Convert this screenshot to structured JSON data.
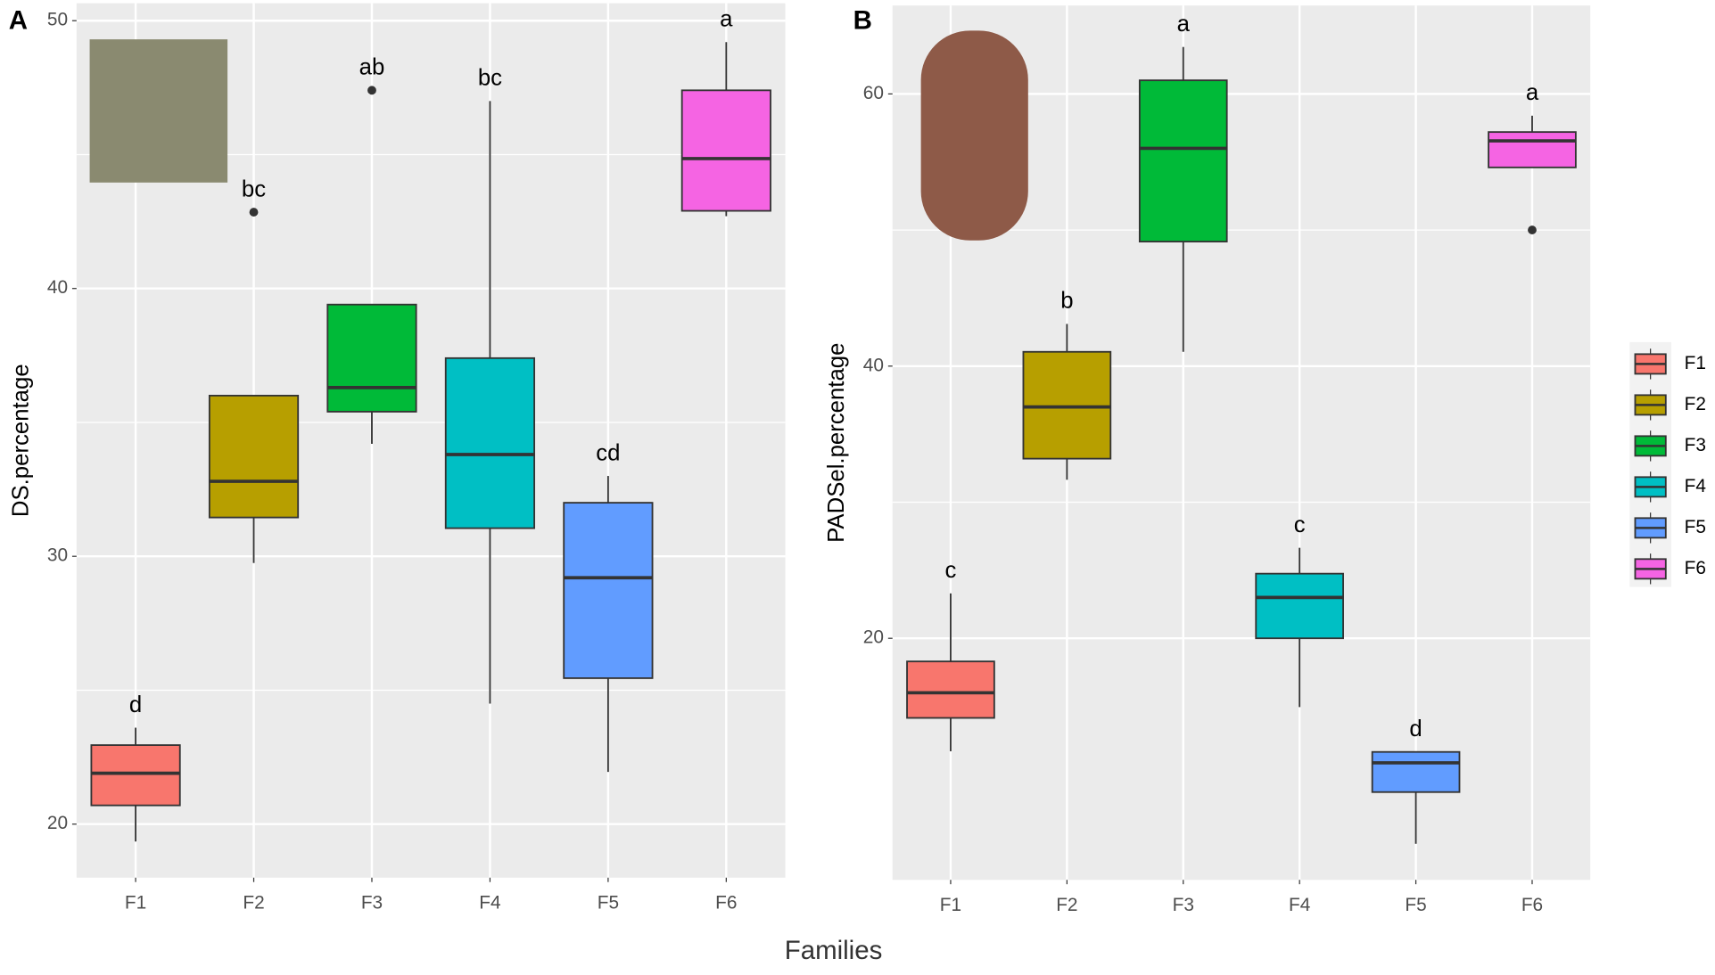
{
  "xlabel": "Families",
  "chart_data": [
    {
      "type": "box",
      "panel": "A",
      "ylabel": "DS.percentage",
      "categories": [
        "F1",
        "F2",
        "F3",
        "F4",
        "F5",
        "F6"
      ],
      "colors": [
        "#F8766D",
        "#B79F00",
        "#00BA38",
        "#00BFC4",
        "#619CFF",
        "#F564E3"
      ],
      "ylim": [
        18.0,
        50.65
      ],
      "yticks": [
        20,
        30,
        40,
        50
      ],
      "grid": true,
      "boxes": [
        {
          "low": 19.35,
          "q1": 20.7,
          "median": 21.9,
          "q3": 22.95,
          "high": 23.6,
          "outliers": []
        },
        {
          "low": 29.75,
          "q1": 31.45,
          "median": 32.8,
          "q3": 36.0,
          "high": 36.0,
          "outliers": [
            42.85
          ]
        },
        {
          "low": 34.2,
          "q1": 35.4,
          "median": 36.3,
          "q3": 39.4,
          "high": 39.4,
          "outliers": [
            47.4
          ]
        },
        {
          "low": 24.5,
          "q1": 31.05,
          "median": 33.8,
          "q3": 37.4,
          "high": 47.0,
          "outliers": []
        },
        {
          "low": 21.95,
          "q1": 25.45,
          "median": 29.2,
          "q3": 32.0,
          "high": 33.0,
          "outliers": []
        },
        {
          "low": 42.7,
          "q1": 42.9,
          "median": 44.85,
          "q3": 47.4,
          "high": 49.2,
          "outliers": []
        }
      ],
      "letters": [
        "d",
        "bc",
        "ab",
        "bc",
        "cd",
        "a"
      ]
    },
    {
      "type": "box",
      "panel": "B",
      "ylabel": "PADSel.percentage",
      "categories": [
        "F1",
        "F2",
        "F3",
        "F4",
        "F5",
        "F6"
      ],
      "colors": [
        "#F8766D",
        "#B79F00",
        "#00BA38",
        "#00BFC4",
        "#619CFF",
        "#F564E3"
      ],
      "ylim": [
        2.25,
        66.5
      ],
      "yticks": [
        20,
        40,
        60
      ],
      "grid": true,
      "boxes": [
        {
          "low": 11.7,
          "q1": 14.15,
          "median": 16.0,
          "q3": 18.3,
          "high": 23.3,
          "outliers": []
        },
        {
          "low": 31.65,
          "q1": 33.2,
          "median": 37.0,
          "q3": 41.05,
          "high": 43.1,
          "outliers": []
        },
        {
          "low": 41.05,
          "q1": 49.15,
          "median": 56.0,
          "q3": 61.0,
          "high": 63.45,
          "outliers": []
        },
        {
          "low": 14.95,
          "q1": 20.0,
          "median": 23.0,
          "q3": 24.75,
          "high": 26.65,
          "outliers": []
        },
        {
          "low": 4.9,
          "q1": 8.7,
          "median": 10.85,
          "q3": 11.65,
          "high": 11.65,
          "outliers": []
        },
        {
          "low": 54.6,
          "q1": 54.6,
          "median": 56.55,
          "q3": 57.2,
          "high": 58.4,
          "outliers": [
            50.0
          ]
        }
      ],
      "letters": [
        "c",
        "b",
        "a",
        "c",
        "d",
        "a"
      ]
    }
  ]
}
